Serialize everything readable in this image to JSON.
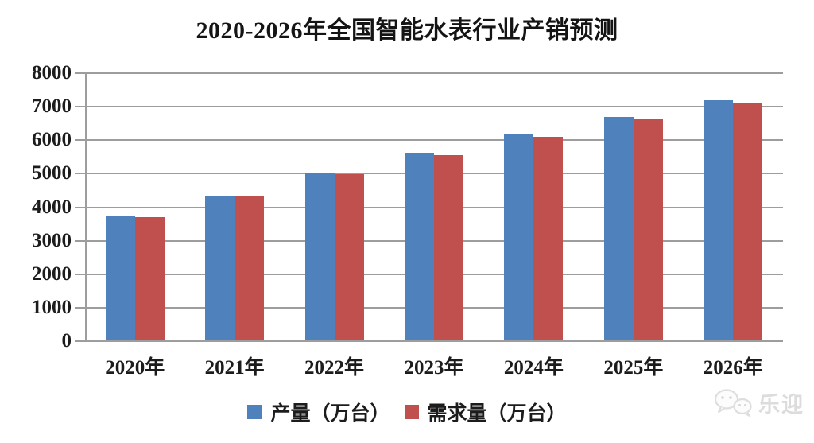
{
  "chart_data": {
    "type": "bar",
    "title": "2020-2026年全国智能水表行业产销预测",
    "categories": [
      "2020年",
      "2021年",
      "2022年",
      "2023年",
      "2024年",
      "2025年",
      "2026年"
    ],
    "series": [
      {
        "name": "产量（万台）",
        "color": "#4F81BD",
        "values": [
          3750,
          4350,
          5000,
          5600,
          6200,
          6700,
          7200
        ]
      },
      {
        "name": "需求量（万台）",
        "color": "#C0504D",
        "values": [
          3700,
          4350,
          4980,
          5550,
          6100,
          6650,
          7100
        ]
      }
    ],
    "xlabel": "",
    "ylabel": "",
    "ylim": [
      0,
      8000
    ],
    "yticks": [
      0,
      1000,
      2000,
      3000,
      4000,
      5000,
      6000,
      7000,
      8000
    ],
    "grid": true,
    "gridline_color": "#9D9D9D",
    "text_color": "#1C1C1C",
    "legend_position": "bottom-center"
  },
  "watermark": {
    "icon": "wechat-icon",
    "text": "乐迎",
    "color": "#DCDCDC"
  }
}
